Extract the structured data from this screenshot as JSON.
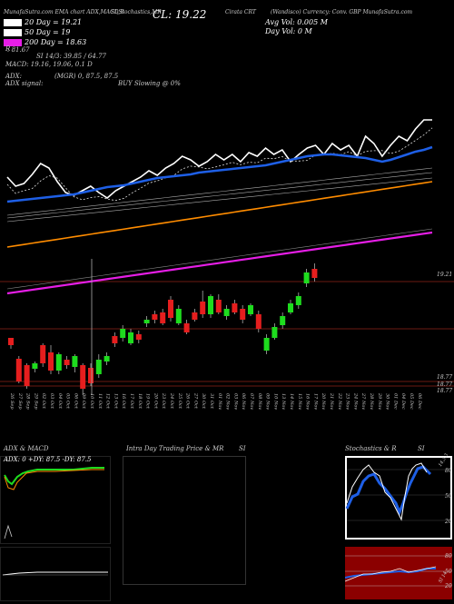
{
  "header": {
    "top_line": "MunafaSutra.com  EMA chart ADX,MACD,B",
    "si_stoch_label": "SI,Stochastics,MR",
    "close_label": "CL: 19.22",
    "symbol_label": "Cirata CRT",
    "company_label": "(Wandisco) Currency: Conv. GBP MunafaSutra.com",
    "avg_vol_label": "Avg Vol: 0.005 M",
    "day_vol_label": "Day Vol: 0   M"
  },
  "legend": [
    {
      "label": "20 Day = 19.21",
      "color": "#ffffff"
    },
    {
      "label": "50 Day = 19",
      "color": "#1e5fe6"
    },
    {
      "label": "200 Day = 18.63",
      "color": "#e61ee6"
    }
  ],
  "indicators": {
    "r_label": "R",
    "r_value": ": 81.67",
    "si_label": "SI 14/3: 39.85 / 64.77",
    "macd_label": "MACD: 19.16, 19.06, 0.1 D",
    "adx_label": "ADX:",
    "adx_value": "(MGR) 0, 87.5, 87.5",
    "adx_signal_label": "ADX signal:",
    "adx_signal_value": "BUY Slowing @ 0%"
  },
  "price_labels": {
    "last": "19.21",
    "low1": "18.77",
    "low2": "18.77",
    "low3": "18.77"
  },
  "dates": [
    "26 Sep",
    "27 Sep",
    "28 Sep",
    "29 Sep",
    "02 Oct",
    "03 Oct",
    "04 Oct",
    "05 Oct",
    "06 Oct",
    "09 Oct",
    "10 Oct",
    "11 Oct",
    "12 Oct",
    "13 Oct",
    "16 Oct",
    "17 Oct",
    "18 Oct",
    "19 Oct",
    "20 Oct",
    "23 Oct",
    "24 Oct",
    "25 Oct",
    "26 Oct",
    "27 Oct",
    "30 Oct",
    "31 Oct",
    "01 Nov",
    "02 Nov",
    "03 Nov",
    "06 Nov",
    "07 Nov",
    "08 Nov",
    "09 Nov",
    "10 Nov",
    "13 Nov",
    "14 Nov",
    "15 Nov",
    "16 Nov",
    "17 Nov",
    "20 Nov",
    "21 Nov",
    "22 Nov",
    "23 Nov",
    "24 Nov",
    "27 Nov",
    "28 Nov",
    "29 Nov",
    "30 Nov",
    "01 Dec",
    "04 Dec",
    "05 Dec",
    "06 Dec"
  ],
  "panels": {
    "adx_title": "ADX  & MACD",
    "adx_readout": "ADX: 0   +DY: 87.5  -DY: 87.5",
    "intraday_title": "Intra  Day Trading Price  & MR",
    "intraday_si": "SI",
    "stoch_title": "Stochastics & R",
    "stoch_si": "SI",
    "stoch_levels": [
      "80",
      "50",
      "20"
    ],
    "stoch_right_label": "14,3,3",
    "si_levels": [
      "80",
      "50",
      "20"
    ],
    "si_right_label": "SI 14"
  },
  "colors": {
    "ema20": "#ffffff",
    "ema50": "#1e5fe6",
    "ema200": "#e61ee6",
    "orange": "#ff8c00",
    "bull": "#1edc1e",
    "bear": "#e61e1e",
    "si_bg": "#8b0000",
    "stoch_blue": "#0a3cc8"
  },
  "chart_data": {
    "type": "candlestick",
    "title": "Cirata CRT",
    "close": 19.22,
    "price_markers": [
      19.21,
      18.77
    ],
    "ema": {
      "20": 19.21,
      "50": 19,
      "200": 18.63
    }
  }
}
